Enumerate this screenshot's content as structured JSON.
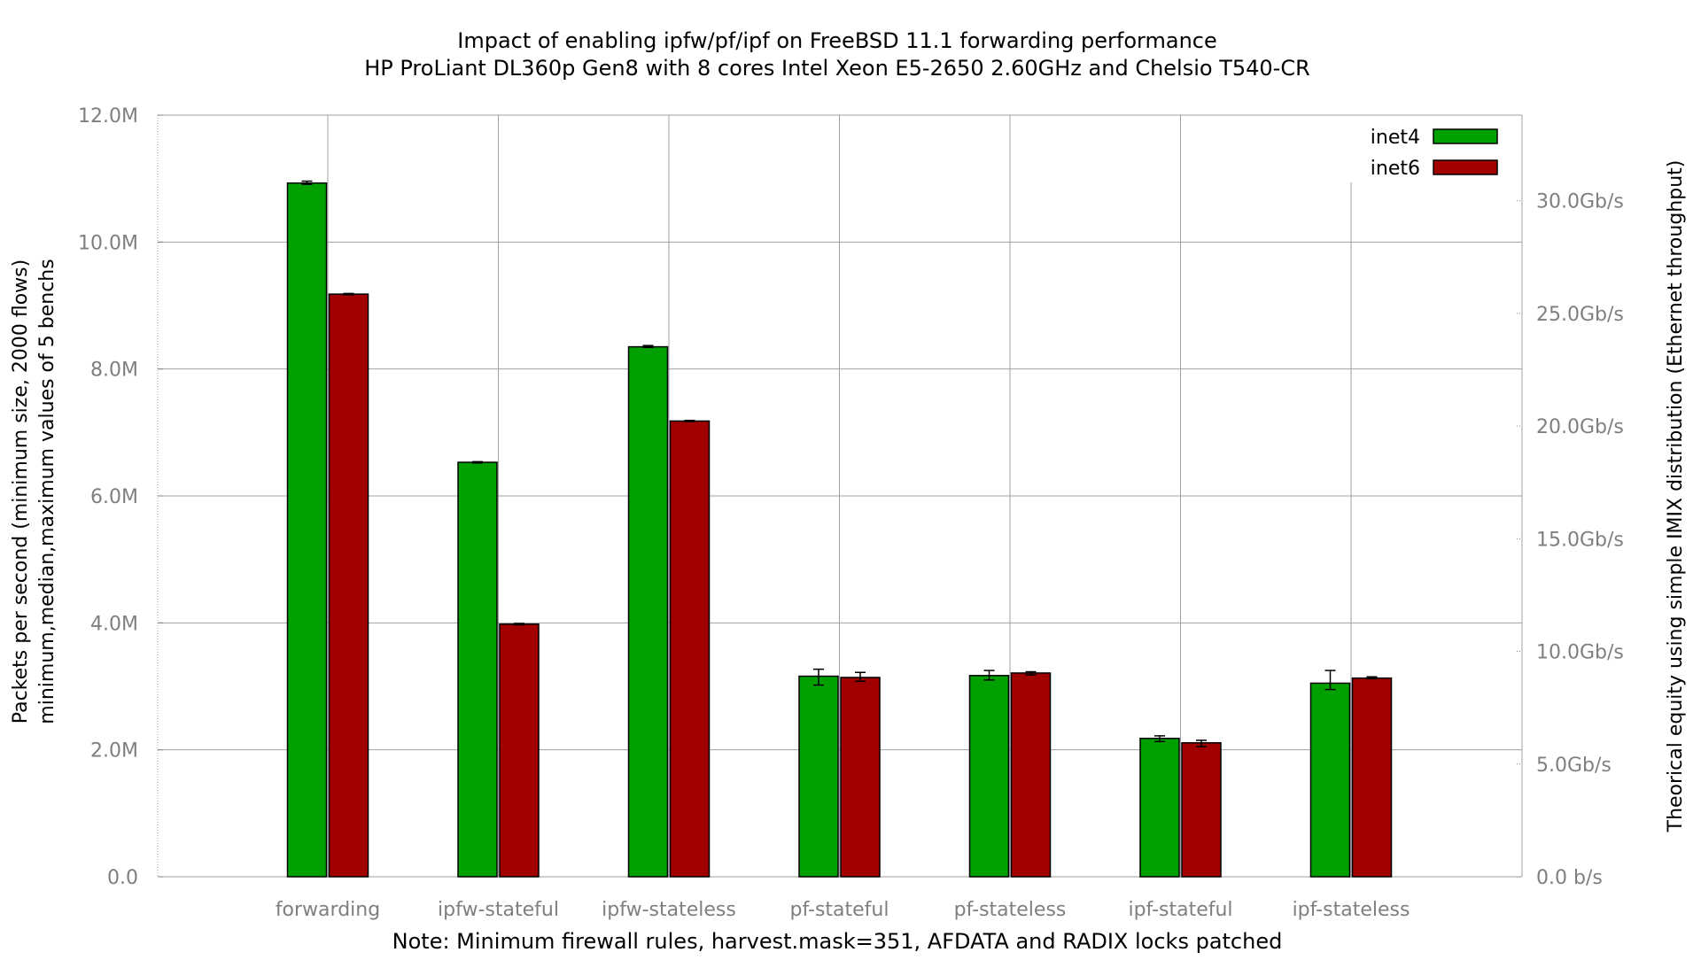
{
  "chart_data": {
    "type": "bar",
    "title_lines": [
      "Impact of enabling ipfw/pf/ipf on FreeBSD 11.1 forwarding performance",
      "HP ProLiant DL360p Gen8 with 8 cores Intel Xeon E5-2650 2.60GHz and Chelsio T540-CR"
    ],
    "ylabel_lines": [
      "Packets per second (minimum size, 2000 flows)",
      "minimum,median,maximum values of 5 benchs"
    ],
    "y2label": "Theorical equity using simple IMIX distribution (Ethernet throughput)",
    "note": "Note: Minimum firewall rules, harvest.mask=351, AFDATA and RADIX locks patched",
    "categories": [
      "forwarding",
      "ipfw-stateful",
      "ipfw-stateless",
      "pf-stateful",
      "pf-stateless",
      "ipf-stateful",
      "ipf-stateless"
    ],
    "ylim": [
      0,
      12000000
    ],
    "yticks": [
      {
        "value": 0,
        "label": "0.0"
      },
      {
        "value": 2000000,
        "label": "2.0M"
      },
      {
        "value": 4000000,
        "label": "4.0M"
      },
      {
        "value": 6000000,
        "label": "6.0M"
      },
      {
        "value": 8000000,
        "label": "8.0M"
      },
      {
        "value": 10000000,
        "label": "10.0M"
      },
      {
        "value": 12000000,
        "label": "12.0M"
      }
    ],
    "y2lim": [
      0,
      33.8
    ],
    "y2ticks": [
      {
        "value": 0,
        "label": "0.0 b/s"
      },
      {
        "value": 5,
        "label": "5.0Gb/s"
      },
      {
        "value": 10,
        "label": "10.0Gb/s"
      },
      {
        "value": 15,
        "label": "15.0Gb/s"
      },
      {
        "value": 20,
        "label": "20.0Gb/s"
      },
      {
        "value": 25,
        "label": "25.0Gb/s"
      },
      {
        "value": 30,
        "label": "30.0Gb/s"
      }
    ],
    "grid": true,
    "legend_position": "top-right",
    "series": [
      {
        "name": "inet4",
        "color": "#00a000",
        "values": [
          10930000,
          6530000,
          8350000,
          3160000,
          3170000,
          2180000,
          3050000
        ],
        "err_low": [
          10910000,
          6520000,
          8340000,
          3020000,
          3100000,
          2130000,
          2950000
        ],
        "err_high": [
          10960000,
          6540000,
          8370000,
          3270000,
          3250000,
          2220000,
          3250000
        ]
      },
      {
        "name": "inet6",
        "color": "#a00000",
        "values": [
          9180000,
          3980000,
          7180000,
          3140000,
          3210000,
          2110000,
          3130000
        ],
        "err_low": [
          9170000,
          3970000,
          7170000,
          3080000,
          3180000,
          2050000,
          3120000
        ],
        "err_high": [
          9190000,
          3990000,
          7190000,
          3220000,
          3230000,
          2150000,
          3150000
        ]
      }
    ]
  }
}
